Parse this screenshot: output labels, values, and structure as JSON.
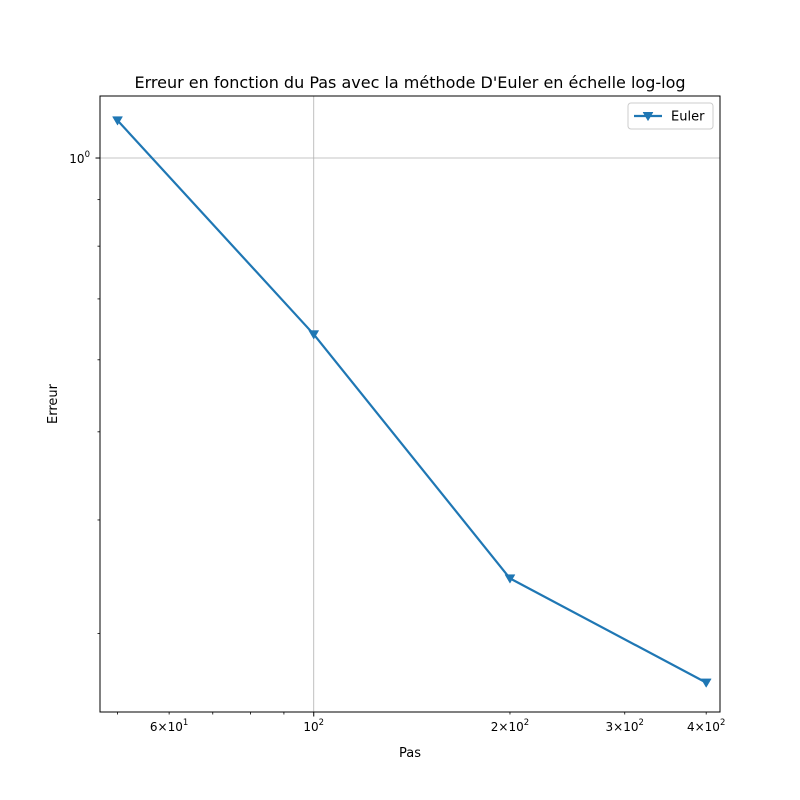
{
  "chart_data": {
    "type": "line",
    "title": "Erreur en fonction du Pas avec la méthode D'Euler en échelle log-log",
    "xlabel": "Pas",
    "ylabel": "Erreur",
    "xscale": "log",
    "yscale": "log",
    "xlim": [
      47,
      420
    ],
    "ylim": [
      0.246,
      1.17
    ],
    "grid": "major",
    "legend_position": "top-right",
    "x_major_ticks": [
      {
        "value": 100,
        "base": "10",
        "exp": "2"
      }
    ],
    "x_minor_ticks": [
      {
        "value": 60,
        "mant": "6",
        "exp": "1"
      },
      {
        "value": 200,
        "mant": "2",
        "exp": "2"
      },
      {
        "value": 300,
        "mant": "3",
        "exp": "2"
      },
      {
        "value": 400,
        "mant": "4",
        "exp": "2"
      }
    ],
    "y_major_ticks": [
      {
        "value": 1,
        "base": "10",
        "exp": "0"
      }
    ],
    "times_sign": "×",
    "series": [
      {
        "name": "Euler",
        "color": "#1f77b4",
        "marker": "triangle-down",
        "x": [
          50,
          100,
          200,
          400
        ],
        "y": [
          1.1,
          0.64,
          0.345,
          0.265
        ]
      }
    ]
  }
}
